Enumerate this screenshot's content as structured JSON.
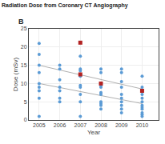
{
  "chart_data": {
    "type": "scatter",
    "title": "Radiation Dose from Coronary CT Angiography",
    "annotations": [
      "B"
    ],
    "xlabel": "Year",
    "ylabel": "Dose (mSv)",
    "xlim": [
      2004.5,
      2010.8
    ],
    "ylim": [
      0,
      25
    ],
    "xticks": [
      2005,
      2006,
      2007,
      2008,
      2009,
      2010
    ],
    "yticks": [
      0,
      5,
      10,
      15,
      20,
      25
    ],
    "grid": true,
    "series": [
      {
        "type": "scatter",
        "marker": "circle",
        "color": "#5b9bd5",
        "x": [
          2005,
          2005,
          2005,
          2005,
          2005,
          2005,
          2005,
          2005,
          2005,
          2006,
          2006,
          2006,
          2006,
          2006,
          2006,
          2006,
          2007,
          2007,
          2007,
          2007,
          2007,
          2007,
          2007,
          2007,
          2007,
          2008,
          2008,
          2008,
          2008,
          2008,
          2008,
          2008,
          2008,
          2008,
          2008,
          2009,
          2009,
          2009,
          2009,
          2009,
          2009,
          2009,
          2009,
          2009,
          2009,
          2010,
          2010,
          2010,
          2010,
          2010,
          2010,
          2010,
          2010,
          2010,
          2010,
          2010,
          2010
        ],
        "values": [
          21,
          18,
          15,
          13,
          10,
          9,
          8,
          6,
          1,
          15,
          14,
          11,
          9,
          8,
          6,
          5,
          17.5,
          14,
          13.5,
          12,
          9.5,
          9,
          7,
          5,
          1,
          14,
          13,
          9.5,
          9,
          7.5,
          7,
          5,
          4.5,
          4,
          3,
          14,
          13,
          10.5,
          9,
          7,
          6,
          5,
          4,
          3,
          2,
          12,
          9,
          8,
          7,
          6,
          5,
          4,
          3.5,
          3,
          2,
          1.5,
          1
        ]
      },
      {
        "type": "scatter",
        "marker": "square",
        "color": "#b22222",
        "x": [
          2007,
          2007,
          2008,
          2010
        ],
        "values": [
          21.2,
          12.5,
          10.0,
          8.0
        ]
      },
      {
        "type": "line",
        "line_style": "solid",
        "color": "#b0b0b0",
        "x": [
          2005,
          2010
        ],
        "values": [
          15.0,
          8.5
        ]
      },
      {
        "type": "line",
        "line_style": "solid",
        "color": "#b0b0b0",
        "x": [
          2005,
          2010
        ],
        "values": [
          10.0,
          4.5
        ]
      }
    ]
  }
}
